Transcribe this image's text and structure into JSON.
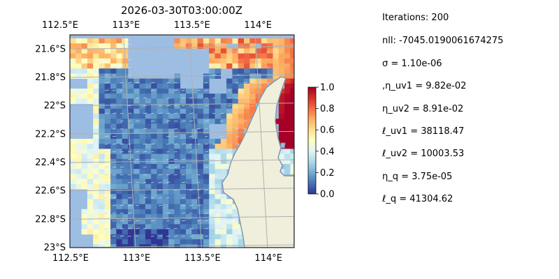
{
  "figure": {
    "title": "2026-03-30T03:00:00Z"
  },
  "map": {
    "lon_range": [
      112.5,
      114.2
    ],
    "lat_range": [
      -23.0,
      -21.5
    ],
    "lon_ticks": [
      112.5,
      113.0,
      113.5,
      114.0
    ],
    "lon_tick_labels": [
      "112.5°E",
      "113°E",
      "113.5°E",
      "114°E"
    ],
    "lat_ticks": [
      -21.6,
      -21.8,
      -22.0,
      -22.2,
      -22.4,
      -22.6,
      -22.8,
      -23.0
    ],
    "lat_tick_labels": [
      "21.6°S",
      "21.8°S",
      "22°S",
      "22.2°S",
      "22.4°S",
      "22.6°S",
      "22.8°S",
      "23°S"
    ],
    "grid": true,
    "colors": {
      "ocean_nodata": "#9dbde3",
      "land": "#efefdb",
      "coast": "#7c93ad",
      "grid": "#b0b0b0",
      "arrows": "#cfd6ea"
    },
    "colormap": "RdYlBu_r"
  },
  "colorbar": {
    "min": 0.0,
    "max": 1.0,
    "ticks": [
      "0.0",
      "0.2",
      "0.4",
      "0.6",
      "0.8",
      "1.0"
    ],
    "placement": "right"
  },
  "stats": [
    "Iterations: 200",
    "nll: -7045.0190061674275",
    "σ = 1.10e-06",
    ",η_uv1 = 9.82e-02",
    "η_uv2 = 8.91e-02",
    "ℓ_uv1 = 38118.47",
    "ℓ_uv2 = 10003.53",
    "η_q = 3.75e-05",
    "ℓ_q = 41304.62"
  ]
}
